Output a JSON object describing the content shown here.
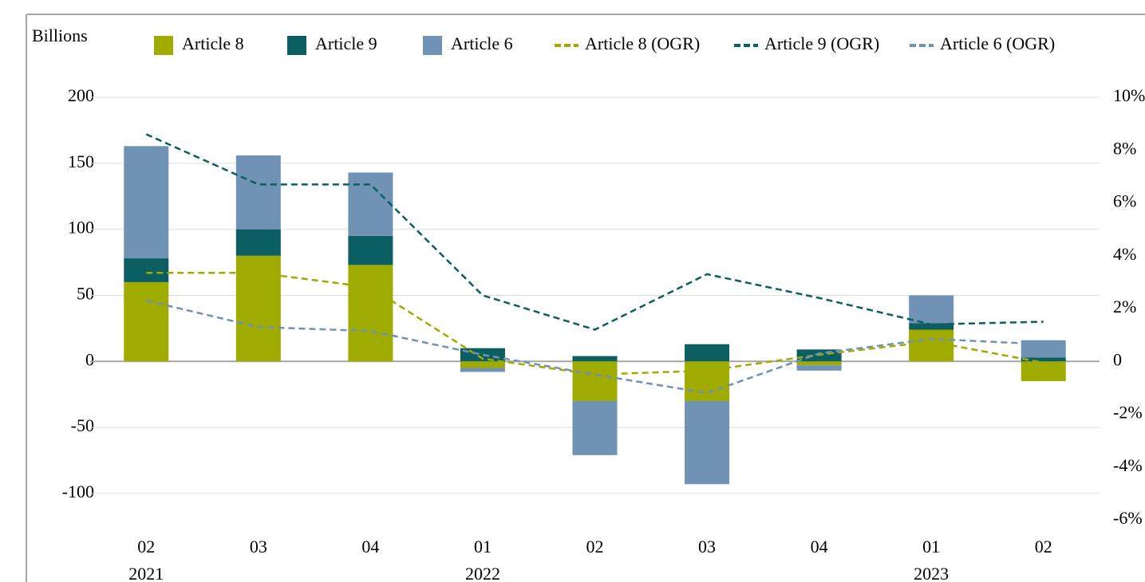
{
  "chart_data": {
    "type": "bar",
    "y_label": "Billions",
    "categories": [
      "02",
      "03",
      "04",
      "01",
      "02",
      "03",
      "04",
      "01",
      "02"
    ],
    "category_groups": [
      "2021",
      null,
      null,
      "2022",
      null,
      null,
      null,
      "2023",
      null
    ],
    "series": [
      {
        "name": "Article 8",
        "color": "#a0ab00",
        "values": [
          60,
          80,
          73,
          -5,
          -30,
          -30,
          -3,
          24,
          -15
        ]
      },
      {
        "name": "Article 9",
        "color": "#0b5e62",
        "values": [
          18,
          20,
          22,
          10,
          4,
          13,
          9,
          5,
          3
        ]
      },
      {
        "name": "Article 6",
        "color": "#7093b5",
        "values": [
          85,
          56,
          48,
          -3,
          -41,
          -63,
          -4,
          21,
          13
        ]
      },
      {
        "name": "Article 8 (OGR)",
        "color": "#a0ab00",
        "type": "line",
        "axis": "y2",
        "values": [
          3.35,
          3.35,
          2.8,
          0.1,
          -0.5,
          -0.35,
          0.25,
          0.75,
          -0.05
        ]
      },
      {
        "name": "Article 9 (OGR)",
        "color": "#0b5e62",
        "type": "line",
        "axis": "y2",
        "values": [
          8.6,
          6.7,
          6.7,
          2.5,
          1.2,
          3.3,
          2.4,
          1.4,
          1.5
        ]
      },
      {
        "name": "Article 6 (OGR)",
        "color": "#7093b5",
        "type": "line",
        "axis": "y2",
        "values": [
          2.3,
          1.3,
          1.15,
          0.25,
          -0.5,
          -1.2,
          0.3,
          0.85,
          0.65
        ]
      }
    ],
    "ylim": [
      -120,
      200
    ],
    "yticks": [
      -100,
      -50,
      0,
      50,
      100,
      150,
      200
    ],
    "y2lim": [
      -6,
      10
    ],
    "y2ticks": [
      {
        "value": -6,
        "label": "-6%"
      },
      {
        "value": -4,
        "label": "-4%"
      },
      {
        "value": -2,
        "label": "-2%"
      },
      {
        "value": 0,
        "label": "0"
      },
      {
        "value": 2,
        "label": "2%"
      },
      {
        "value": 4,
        "label": "4%"
      },
      {
        "value": 6,
        "label": "6%"
      },
      {
        "value": 8,
        "label": "8%"
      },
      {
        "value": 10,
        "label": "10%"
      }
    ],
    "grid": true,
    "legend": "top"
  }
}
